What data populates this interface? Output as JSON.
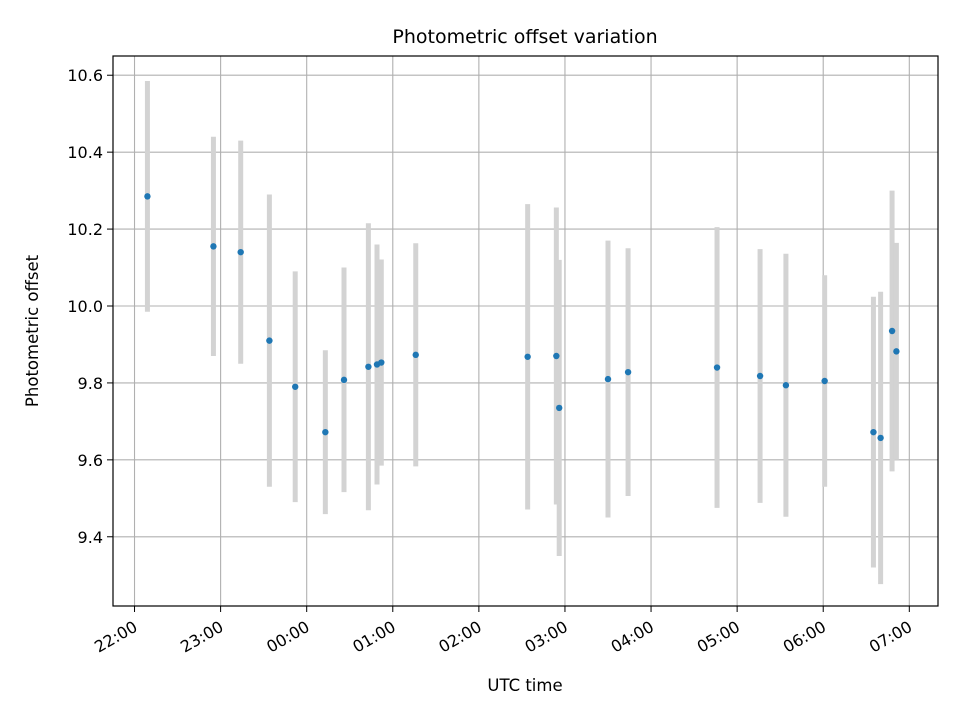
{
  "chart_data": {
    "type": "scatter",
    "title": "Photometric offset variation",
    "xlabel": "UTC time",
    "ylabel": "Photometric offset",
    "xlim": [
      "21:45",
      "07:20"
    ],
    "ylim": [
      9.22,
      10.65
    ],
    "x_ticks": [
      "22:00",
      "23:00",
      "00:00",
      "01:00",
      "02:00",
      "03:00",
      "04:00",
      "05:00",
      "06:00",
      "07:00"
    ],
    "y_ticks": [
      "9.4",
      "9.6",
      "9.8",
      "10.0",
      "10.2",
      "10.4",
      "10.6"
    ],
    "grid": true,
    "marker_color": "#1f77b4",
    "errorbar_color": "#d3d3d3",
    "points": [
      {
        "t": "22:09",
        "y": 10.285,
        "err": 0.3
      },
      {
        "t": "22:55",
        "y": 10.155,
        "err": 0.285
      },
      {
        "t": "23:14",
        "y": 10.14,
        "err": 0.29
      },
      {
        "t": "23:34",
        "y": 9.91,
        "err": 0.38
      },
      {
        "t": "23:52",
        "y": 9.79,
        "err": 0.3
      },
      {
        "t": "00:13",
        "y": 9.672,
        "err": 0.213
      },
      {
        "t": "00:26",
        "y": 9.808,
        "err": 0.292
      },
      {
        "t": "00:43",
        "y": 9.842,
        "err": 0.373
      },
      {
        "t": "00:49",
        "y": 9.848,
        "err": 0.312
      },
      {
        "t": "00:52",
        "y": 9.853,
        "err": 0.268
      },
      {
        "t": "01:16",
        "y": 9.873,
        "err": 0.29
      },
      {
        "t": "02:34",
        "y": 9.868,
        "err": 0.397
      },
      {
        "t": "02:54",
        "y": 9.87,
        "err": 0.386
      },
      {
        "t": "02:56",
        "y": 9.735,
        "err": 0.385
      },
      {
        "t": "03:30",
        "y": 9.81,
        "err": 0.36
      },
      {
        "t": "03:44",
        "y": 9.828,
        "err": 0.322
      },
      {
        "t": "04:46",
        "y": 9.84,
        "err": 0.365
      },
      {
        "t": "05:16",
        "y": 9.818,
        "err": 0.33
      },
      {
        "t": "05:34",
        "y": 9.794,
        "err": 0.342
      },
      {
        "t": "06:01",
        "y": 9.805,
        "err": 0.275
      },
      {
        "t": "06:35",
        "y": 9.672,
        "err": 0.352
      },
      {
        "t": "06:40",
        "y": 9.657,
        "err": 0.38
      },
      {
        "t": "06:48",
        "y": 9.935,
        "err": 0.365
      },
      {
        "t": "06:51",
        "y": 9.882,
        "err": 0.282
      }
    ]
  }
}
